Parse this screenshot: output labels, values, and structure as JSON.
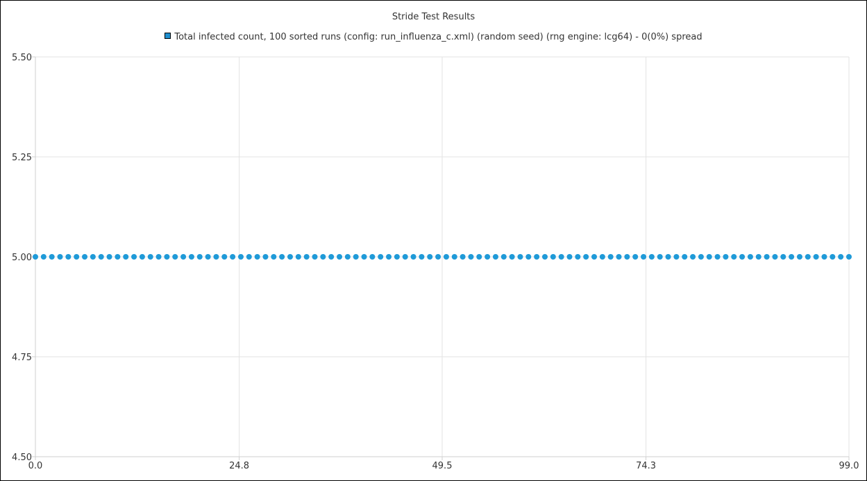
{
  "chart_data": {
    "type": "scatter",
    "title": "Stride Test Results",
    "xlabel": "",
    "ylabel": "",
    "xlim": [
      0.0,
      99.0
    ],
    "ylim": [
      4.5,
      5.5
    ],
    "x_ticks": [
      "0.0",
      "24.8",
      "49.5",
      "74.3",
      "99.0"
    ],
    "y_ticks": [
      "5.50",
      "5.25",
      "5.00",
      "4.75",
      "4.50"
    ],
    "grid": true,
    "legend_position": "top-center",
    "series": [
      {
        "name": "Total infected count, 100 sorted runs (config: run_influenza_c.xml) (random seed) (rng engine: lcg64) - 0(0%) spread",
        "color": "#1f9ad8",
        "x": [
          0,
          1,
          2,
          3,
          4,
          5,
          6,
          7,
          8,
          9,
          10,
          11,
          12,
          13,
          14,
          15,
          16,
          17,
          18,
          19,
          20,
          21,
          22,
          23,
          24,
          25,
          26,
          27,
          28,
          29,
          30,
          31,
          32,
          33,
          34,
          35,
          36,
          37,
          38,
          39,
          40,
          41,
          42,
          43,
          44,
          45,
          46,
          47,
          48,
          49,
          50,
          51,
          52,
          53,
          54,
          55,
          56,
          57,
          58,
          59,
          60,
          61,
          62,
          63,
          64,
          65,
          66,
          67,
          68,
          69,
          70,
          71,
          72,
          73,
          74,
          75,
          76,
          77,
          78,
          79,
          80,
          81,
          82,
          83,
          84,
          85,
          86,
          87,
          88,
          89,
          90,
          91,
          92,
          93,
          94,
          95,
          96,
          97,
          98,
          99
        ],
        "y": [
          5,
          5,
          5,
          5,
          5,
          5,
          5,
          5,
          5,
          5,
          5,
          5,
          5,
          5,
          5,
          5,
          5,
          5,
          5,
          5,
          5,
          5,
          5,
          5,
          5,
          5,
          5,
          5,
          5,
          5,
          5,
          5,
          5,
          5,
          5,
          5,
          5,
          5,
          5,
          5,
          5,
          5,
          5,
          5,
          5,
          5,
          5,
          5,
          5,
          5,
          5,
          5,
          5,
          5,
          5,
          5,
          5,
          5,
          5,
          5,
          5,
          5,
          5,
          5,
          5,
          5,
          5,
          5,
          5,
          5,
          5,
          5,
          5,
          5,
          5,
          5,
          5,
          5,
          5,
          5,
          5,
          5,
          5,
          5,
          5,
          5,
          5,
          5,
          5,
          5,
          5,
          5,
          5,
          5,
          5,
          5,
          5,
          5,
          5,
          5
        ]
      }
    ]
  }
}
